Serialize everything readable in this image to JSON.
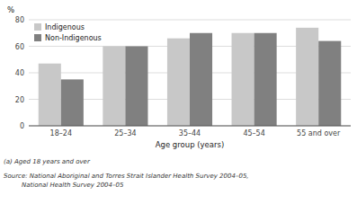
{
  "chart_data": {
    "type": "bar",
    "categories": [
      "18–24",
      "25–34",
      "35–44",
      "45–54",
      "55 and over"
    ],
    "series": [
      {
        "name": "Indigenous",
        "color": "#c8c8c8",
        "values": [
          47,
          60,
          66,
          70,
          74
        ]
      },
      {
        "name": "Non-Indigenous",
        "color": "#808080",
        "values": [
          35,
          60,
          70,
          70,
          64
        ]
      }
    ],
    "xlabel": "Age group (years)",
    "ylabel": "%",
    "ylim": [
      0,
      80
    ],
    "yticks": [
      0,
      20,
      40,
      60,
      80
    ],
    "grid": true,
    "legend": "upper left",
    "annotations": [
      "(a) Aged 18 years and over",
      "Source: National Aboriginal and Torres Strait Islander Health Survey 2004–05,",
      "         National Health Survey 2004–05"
    ]
  }
}
